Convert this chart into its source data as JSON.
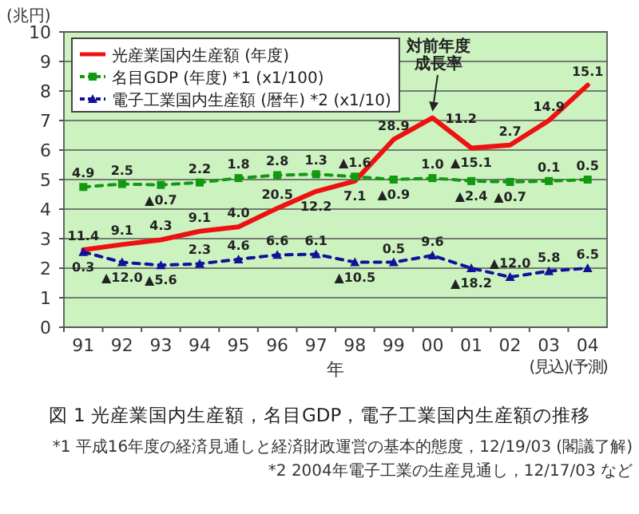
{
  "chart_data": {
    "type": "line",
    "ylabel": "(兆円)",
    "xlabel": "年",
    "title": "図 1 光産業国内生産額，名目GDP，電子工業国内生産額の推移",
    "categories": [
      "91",
      "92",
      "93",
      "94",
      "95",
      "96",
      "97",
      "98",
      "99",
      "00",
      "01",
      "02",
      "03\n(見込)",
      "04\n(予測)"
    ],
    "ylim": [
      0,
      10
    ],
    "yticks": [
      0,
      1,
      2,
      3,
      4,
      5,
      6,
      7,
      8,
      9,
      10
    ],
    "grid": "y",
    "legend": "top left",
    "series": [
      {
        "name": "光産業国内生産額 (年度)",
        "color": "#ee1111",
        "line_style": "solid",
        "values": [
          2.62,
          2.8,
          2.96,
          3.25,
          3.4,
          4.03,
          4.6,
          4.95,
          6.36,
          7.09,
          6.07,
          6.17,
          7.0,
          8.2
        ]
      },
      {
        "name": "名目GDP (年度) *1 (x1/100)",
        "color": "#119911",
        "line_style": "dashed",
        "marker": "square",
        "values": [
          4.75,
          4.85,
          4.82,
          4.9,
          5.05,
          5.15,
          5.18,
          5.1,
          5.0,
          5.05,
          4.95,
          4.92,
          4.95,
          5.0
        ]
      },
      {
        "name": "電子工業国内生産額 (暦年) *2 (x1/10)",
        "color": "#111199",
        "line_style": "dashed",
        "marker": "triangle",
        "values": [
          2.55,
          2.2,
          2.1,
          2.15,
          2.3,
          2.45,
          2.47,
          2.2,
          2.2,
          2.43,
          2.0,
          1.7,
          1.9,
          2.0
        ]
      }
    ],
    "annotations": [
      {
        "text": "4.9",
        "x": "91",
        "y": 4.75
      },
      {
        "text": "2.5",
        "x": "92",
        "y": 4.85
      },
      {
        "text": "▲0.7",
        "x": "93",
        "y": 4.82
      },
      {
        "text": "2.2",
        "x": "94",
        "y": 4.9
      },
      {
        "text": "1.8",
        "x": "95",
        "y": 5.05
      },
      {
        "text": "2.8",
        "x": "96",
        "y": 5.15
      },
      {
        "text": "1.3",
        "x": "97",
        "y": 5.18
      },
      {
        "text": "▲1.6",
        "x": "98",
        "y": 5.1
      },
      {
        "text": "▲0.9",
        "x": "99",
        "y": 5.0
      },
      {
        "text": "1.0",
        "x": "00",
        "y": 5.05
      },
      {
        "text": "▲2.4",
        "x": "01",
        "y": 4.95
      },
      {
        "text": "▲0.7",
        "x": "02",
        "y": 4.92
      },
      {
        "text": "0.1",
        "x": "03\n(見込)",
        "y": 4.95
      },
      {
        "text": "0.5",
        "x": "04\n(予測)",
        "y": 5.0
      },
      {
        "text": "0.3",
        "x": "91",
        "y": 2.55
      },
      {
        "text": "▲12.0",
        "x": "92",
        "y": 2.2
      },
      {
        "text": "▲5.6",
        "x": "93",
        "y": 2.1
      },
      {
        "text": "2.3",
        "x": "94",
        "y": 2.15
      },
      {
        "text": "4.6",
        "x": "95",
        "y": 2.3
      },
      {
        "text": "6.6",
        "x": "96",
        "y": 2.45
      },
      {
        "text": "6.1",
        "x": "97",
        "y": 2.47
      },
      {
        "text": "▲10.5",
        "x": "98",
        "y": 2.2
      },
      {
        "text": "0.5",
        "x": "99",
        "y": 2.2
      },
      {
        "text": "9.6",
        "x": "00",
        "y": 2.43
      },
      {
        "text": "▲18.2",
        "x": "01",
        "y": 2.0
      },
      {
        "text": "▲12.0",
        "x": "02",
        "y": 1.7
      },
      {
        "text": "5.8",
        "x": "03\n(見込)",
        "y": 1.9
      },
      {
        "text": "6.5",
        "x": "04\n(予測)",
        "y": 2.0
      },
      {
        "text": "11.4",
        "x": "91",
        "y": 2.62
      },
      {
        "text": "9.1",
        "x": "92",
        "y": 2.8
      },
      {
        "text": "4.3",
        "x": "93",
        "y": 2.96
      },
      {
        "text": "9.1",
        "x": "94",
        "y": 3.25
      },
      {
        "text": "4.0",
        "x": "95",
        "y": 3.4
      },
      {
        "text": "20.5",
        "x": "96",
        "y": 4.03
      },
      {
        "text": "12.2",
        "x": "97",
        "y": 4.6
      },
      {
        "text": "7.1",
        "x": "98",
        "y": 4.95
      },
      {
        "text": "28.9",
        "x": "99",
        "y": 6.36
      },
      {
        "text": "11.2",
        "x": "00",
        "y": 7.09
      },
      "対前年度成長率",
      {
        "text": "▲15.1",
        "x": "01",
        "y": 6.07
      },
      {
        "text": "2.7",
        "x": "02",
        "y": 6.17
      },
      {
        "text": "14.9",
        "x": "03\n(見込)",
        "y": 7.0
      },
      {
        "text": "15.1",
        "x": "04\n(予測)",
        "y": 8.2
      },
      "*1 平成16年度の経済見通しと経済財政運営の基本的態度，12/19/03 (閣議了解)",
      "*2 2004年電子工業の生産見通し，12/17/03 など"
    ]
  }
}
